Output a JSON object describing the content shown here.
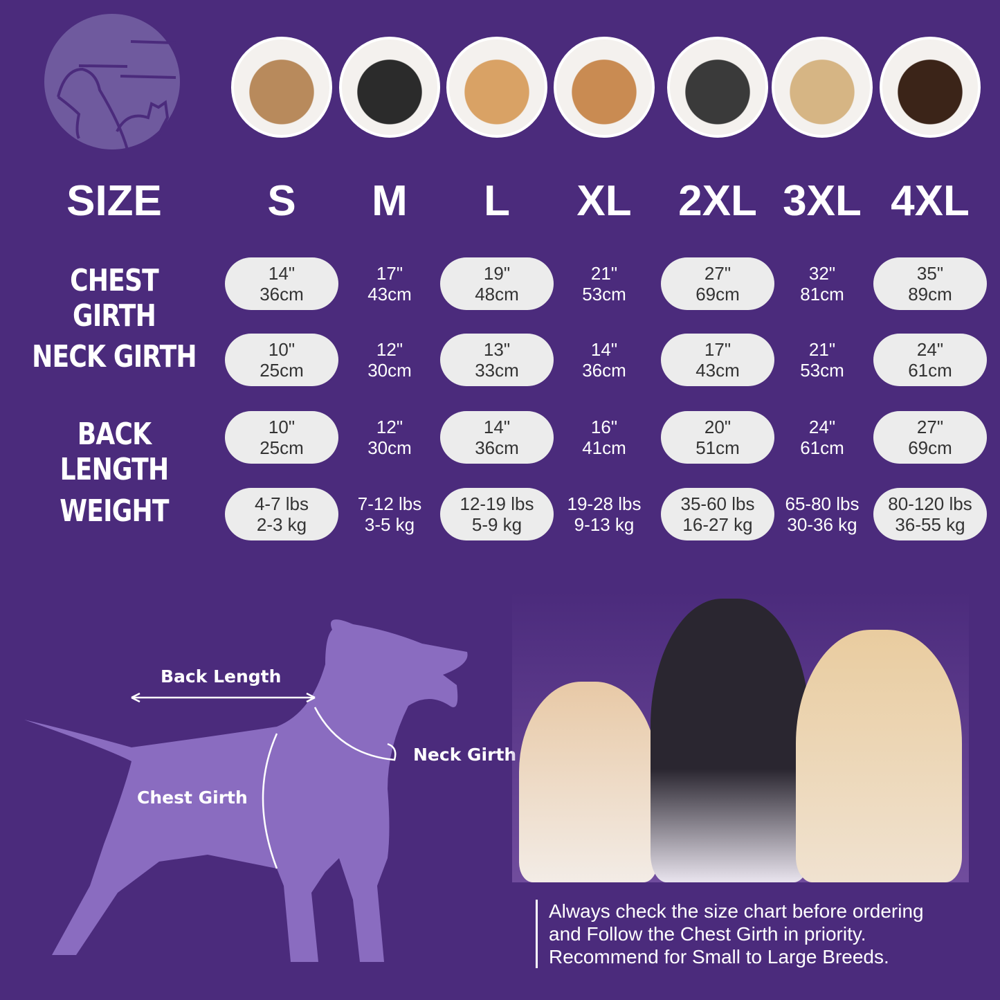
{
  "header": {
    "size_label": "SIZE",
    "sizes": [
      "S",
      "M",
      "L",
      "XL",
      "2XL",
      "3XL",
      "4XL"
    ]
  },
  "logo_icon": "dog-cat-outline-logo",
  "rows": [
    {
      "label": "CHEST GIRTH",
      "values": [
        [
          "14\"",
          "36cm"
        ],
        [
          "17\"",
          "43cm"
        ],
        [
          "19\"",
          "48cm"
        ],
        [
          "21\"",
          "53cm"
        ],
        [
          "27\"",
          "69cm"
        ],
        [
          "32\"",
          "81cm"
        ],
        [
          "35\"",
          "89cm"
        ]
      ]
    },
    {
      "label": "NECK GIRTH",
      "values": [
        [
          "10\"",
          "25cm"
        ],
        [
          "12\"",
          "30cm"
        ],
        [
          "13\"",
          "33cm"
        ],
        [
          "14\"",
          "36cm"
        ],
        [
          "17\"",
          "43cm"
        ],
        [
          "21\"",
          "53cm"
        ],
        [
          "24\"",
          "61cm"
        ]
      ]
    },
    {
      "label": "BACK LENGTH",
      "values": [
        [
          "10\"",
          "25cm"
        ],
        [
          "12\"",
          "30cm"
        ],
        [
          "14\"",
          "36cm"
        ],
        [
          "16\"",
          "41cm"
        ],
        [
          "20\"",
          "51cm"
        ],
        [
          "24\"",
          "61cm"
        ],
        [
          "27\"",
          "69cm"
        ]
      ]
    },
    {
      "label": "WEIGHT",
      "values": [
        [
          "4-7 lbs",
          "2-3 kg"
        ],
        [
          "7-12 lbs",
          "3-5 kg"
        ],
        [
          "12-19 lbs",
          "5-9 kg"
        ],
        [
          "19-28 lbs",
          "9-13 kg"
        ],
        [
          "35-60 lbs",
          "16-27 kg"
        ],
        [
          "65-80 lbs",
          "30-36 kg"
        ],
        [
          "80-120 lbs",
          "36-55 kg"
        ]
      ]
    }
  ],
  "diagram": {
    "back_length": "Back Length",
    "neck_girth": "Neck Girth",
    "chest_girth": "Chest Girth"
  },
  "note": [
    "Always check the size chart before ordering",
    "and Follow the Chest Girth in priority.",
    "Recommend for Small to Large Breeds."
  ],
  "colors": {
    "background": "#4b2b7c",
    "pill": "#ececec",
    "silhouette": "#8a6cc0"
  }
}
